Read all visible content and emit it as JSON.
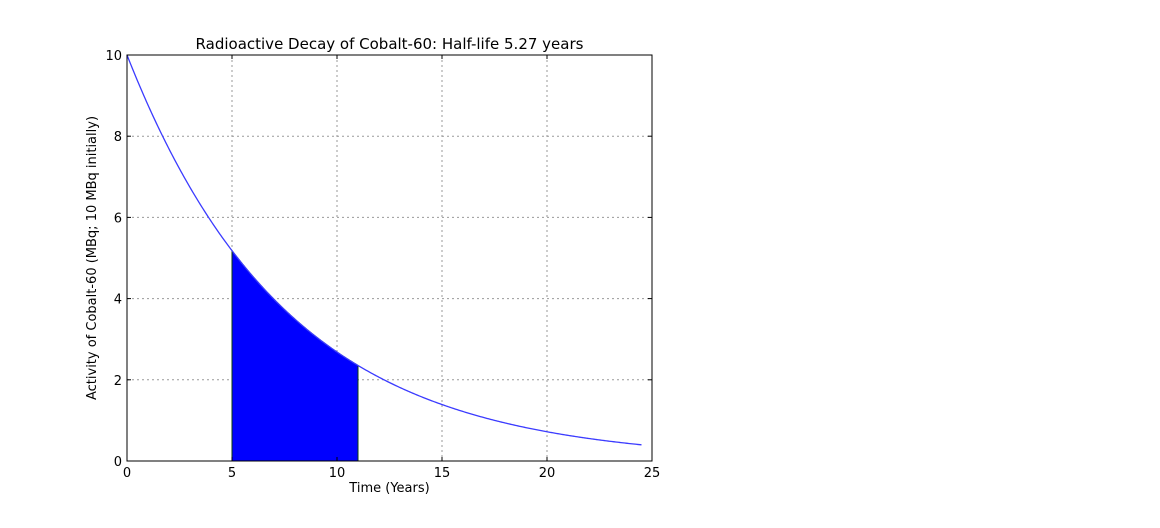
{
  "chart_data": {
    "type": "area",
    "title": "Radioactive Decay of Cobalt-60: Half-life 5.27 years",
    "xlabel": "Time (Years)",
    "ylabel": "Activity of Cobalt-60 (MBq; 10 MBq initially)",
    "xlim": [
      0,
      25
    ],
    "ylim": [
      0,
      10
    ],
    "xticks": [
      0,
      5,
      10,
      15,
      20,
      25
    ],
    "yticks": [
      0,
      2,
      4,
      6,
      8,
      10
    ],
    "grid": true,
    "initial_activity": 10,
    "half_life": 5.27,
    "series": [
      {
        "x": [
          0,
          1,
          2,
          3,
          4,
          5,
          6,
          7,
          8,
          9,
          10,
          11,
          12,
          13,
          14,
          15,
          16,
          17,
          18,
          19,
          20,
          21,
          22,
          23,
          24,
          24.5
        ],
        "values": [
          10.0,
          8.77,
          7.69,
          6.74,
          5.91,
          5.18,
          4.54,
          3.98,
          3.49,
          3.06,
          2.68,
          2.35,
          2.06,
          1.81,
          1.59,
          1.39,
          1.22,
          1.07,
          0.94,
          0.82,
          0.72,
          0.63,
          0.55,
          0.49,
          0.43,
          0.4
        ],
        "color": "#3b3bff"
      }
    ],
    "shaded_region": {
      "x_start": 5,
      "x_end": 11,
      "color": "#0000ff"
    }
  }
}
